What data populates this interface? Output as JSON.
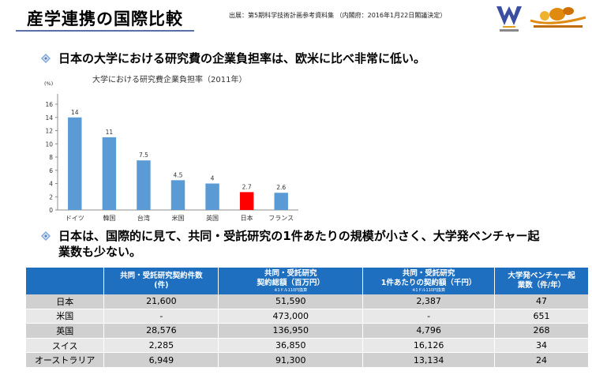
{
  "header": {
    "title": "産学連携の国際比較",
    "source": "出展：第5期科学技術計画参考資料集 （内閣府：2016年1月22日閣議決定）"
  },
  "bullets": [
    "日本の大学における研究費の企業負担率は、欧米に比べ非常に低い。",
    "日本は、国際的に見て、共同・受託研究の1件あたりの規模が小さく、大学発ベンチャー起",
    "業数も少ない。"
  ],
  "chart_data": {
    "type": "bar",
    "title": "大学における研究費企業負担率（2011年）",
    "ylabel": "(%)",
    "ylim": [
      0,
      16
    ],
    "yticks": [
      "0",
      "2",
      "4",
      "6",
      "8",
      "10",
      "12",
      "14",
      "16"
    ],
    "categories": [
      "ドイツ",
      "韓国",
      "台湾",
      "米国",
      "英国",
      "日本",
      "フランス"
    ],
    "values": [
      14,
      11,
      7.5,
      4.5,
      4,
      2.7,
      2.6
    ],
    "value_labels": [
      "14",
      "11",
      "7.5",
      "4.5",
      "4",
      "2.7",
      "2.6"
    ],
    "colors": [
      "#5b9bd5",
      "#5b9bd5",
      "#5b9bd5",
      "#5b9bd5",
      "#5b9bd5",
      "#ff0000",
      "#5b9bd5"
    ],
    "grid": false
  },
  "table": {
    "headers": [
      {
        "l1": "",
        "l2": "",
        "note": ""
      },
      {
        "l1": "共同・受託研究契約件数",
        "l2": "(件)",
        "note": ""
      },
      {
        "l1": "共同・受託研究",
        "l2": "契約総額（百万円）",
        "note": "※1ドル110円換算"
      },
      {
        "l1": "共同・受託研究",
        "l2": "1件あたりの契約額（千円）",
        "note": "※1ドル110円換算"
      },
      {
        "l1": "大学発ベンチャー起",
        "l2": "業数（件/年）",
        "note": ""
      }
    ],
    "rows": [
      [
        "日本",
        "21,600",
        "51,590",
        "2,387",
        "47"
      ],
      [
        "米国",
        "-",
        "473,000",
        "-",
        "651"
      ],
      [
        "英国",
        "28,576",
        "136,950",
        "4,796",
        "268"
      ],
      [
        "スイス",
        "2,285",
        "36,850",
        "16,126",
        "34"
      ],
      [
        "オーストラリア",
        "6,949",
        "91,300",
        "13,134",
        "24"
      ]
    ]
  },
  "colors": {
    "bar": "#5b9bd5",
    "highlight_bar": "#ff0000",
    "table_header": "#1f6fc0",
    "accent": "#5a6ea8"
  },
  "icons": [
    "diamond-bullet-icon",
    "university-logo-icon",
    "bird-logo-icon"
  ]
}
